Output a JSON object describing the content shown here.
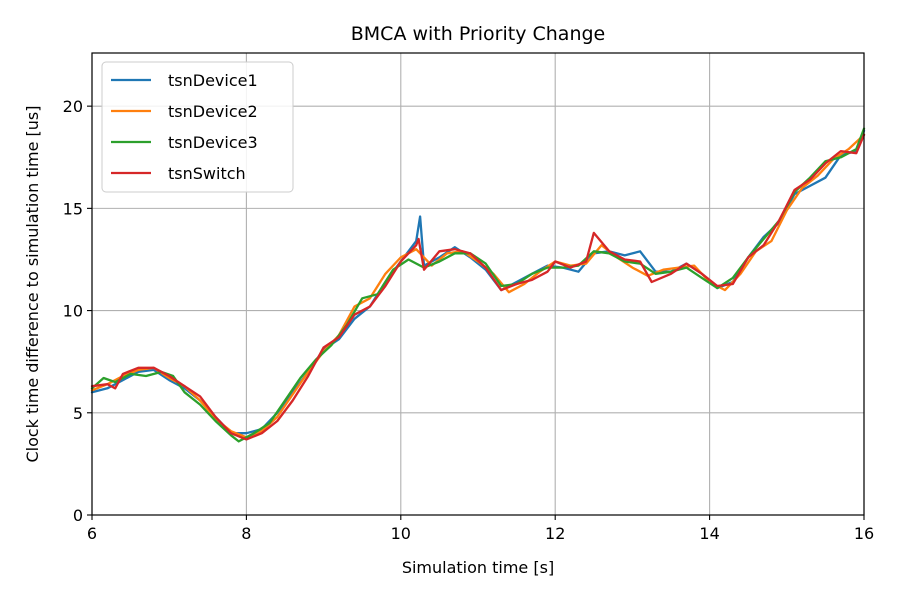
{
  "chart_data": {
    "type": "line",
    "title": "BMCA with Priority Change",
    "xlabel": "Simulation time [s]",
    "ylabel": "Clock time difference to simulation time [us]",
    "xlim": [
      6,
      16
    ],
    "ylim": [
      0,
      22.6
    ],
    "xticks": [
      6,
      8,
      10,
      12,
      14,
      16
    ],
    "yticks": [
      0,
      5,
      10,
      15,
      20
    ],
    "grid": true,
    "legend_position": "top-left",
    "colors": [
      "#1f77b4",
      "#ff7f0e",
      "#2ca02c",
      "#d62728"
    ],
    "series": [
      {
        "name": "tsnDevice1",
        "color": "#1f77b4",
        "points": [
          [
            6.0,
            6.0
          ],
          [
            6.2,
            6.2
          ],
          [
            6.4,
            6.6
          ],
          [
            6.6,
            7.0
          ],
          [
            6.8,
            7.1
          ],
          [
            7.0,
            6.6
          ],
          [
            7.2,
            6.2
          ],
          [
            7.4,
            5.6
          ],
          [
            7.6,
            4.8
          ],
          [
            7.8,
            4.0
          ],
          [
            8.0,
            4.0
          ],
          [
            8.2,
            4.2
          ],
          [
            8.4,
            5.0
          ],
          [
            8.6,
            6.0
          ],
          [
            8.8,
            7.0
          ],
          [
            9.0,
            8.1
          ],
          [
            9.2,
            8.6
          ],
          [
            9.4,
            9.6
          ],
          [
            9.6,
            10.2
          ],
          [
            9.8,
            11.4
          ],
          [
            10.0,
            12.4
          ],
          [
            10.2,
            13.4
          ],
          [
            10.25,
            14.6
          ],
          [
            10.3,
            12.2
          ],
          [
            10.5,
            12.6
          ],
          [
            10.7,
            13.1
          ],
          [
            10.9,
            12.6
          ],
          [
            11.1,
            12.0
          ],
          [
            11.3,
            11.0
          ],
          [
            11.5,
            11.4
          ],
          [
            11.7,
            11.8
          ],
          [
            11.9,
            12.2
          ],
          [
            12.1,
            12.1
          ],
          [
            12.3,
            11.9
          ],
          [
            12.5,
            12.8
          ],
          [
            12.7,
            12.9
          ],
          [
            12.9,
            12.7
          ],
          [
            13.1,
            12.9
          ],
          [
            13.3,
            11.9
          ],
          [
            13.5,
            11.9
          ],
          [
            13.7,
            12.3
          ],
          [
            13.9,
            11.8
          ],
          [
            14.1,
            11.1
          ],
          [
            14.3,
            11.4
          ],
          [
            14.5,
            12.6
          ],
          [
            14.7,
            13.6
          ],
          [
            14.9,
            14.3
          ],
          [
            15.1,
            15.7
          ],
          [
            15.3,
            16.1
          ],
          [
            15.5,
            16.5
          ],
          [
            15.7,
            17.6
          ],
          [
            15.9,
            17.8
          ],
          [
            16.0,
            18.8
          ]
        ]
      },
      {
        "name": "tsnDevice2",
        "color": "#ff7f0e",
        "points": [
          [
            6.0,
            6.1
          ],
          [
            6.2,
            6.4
          ],
          [
            6.4,
            6.8
          ],
          [
            6.6,
            7.1
          ],
          [
            6.8,
            7.2
          ],
          [
            7.0,
            6.7
          ],
          [
            7.2,
            6.3
          ],
          [
            7.4,
            5.6
          ],
          [
            7.6,
            4.7
          ],
          [
            7.8,
            4.1
          ],
          [
            8.0,
            3.8
          ],
          [
            8.2,
            4.1
          ],
          [
            8.4,
            4.8
          ],
          [
            8.6,
            5.9
          ],
          [
            8.8,
            7.0
          ],
          [
            9.0,
            8.0
          ],
          [
            9.2,
            8.8
          ],
          [
            9.4,
            10.2
          ],
          [
            9.6,
            10.6
          ],
          [
            9.8,
            11.8
          ],
          [
            10.0,
            12.6
          ],
          [
            10.2,
            13.0
          ],
          [
            10.4,
            12.2
          ],
          [
            10.6,
            12.8
          ],
          [
            10.8,
            12.9
          ],
          [
            11.0,
            12.4
          ],
          [
            11.2,
            11.8
          ],
          [
            11.4,
            10.9
          ],
          [
            11.6,
            11.3
          ],
          [
            11.8,
            11.9
          ],
          [
            12.0,
            12.4
          ],
          [
            12.2,
            12.2
          ],
          [
            12.4,
            12.3
          ],
          [
            12.6,
            13.2
          ],
          [
            12.8,
            12.6
          ],
          [
            13.0,
            12.1
          ],
          [
            13.2,
            11.7
          ],
          [
            13.4,
            12.0
          ],
          [
            13.6,
            12.1
          ],
          [
            13.8,
            12.2
          ],
          [
            14.0,
            11.4
          ],
          [
            14.2,
            11.0
          ],
          [
            14.4,
            11.8
          ],
          [
            14.6,
            12.9
          ],
          [
            14.8,
            13.4
          ],
          [
            15.0,
            14.9
          ],
          [
            15.2,
            16.0
          ],
          [
            15.4,
            16.6
          ],
          [
            15.6,
            17.4
          ],
          [
            15.8,
            17.9
          ],
          [
            16.0,
            18.6
          ]
        ]
      },
      {
        "name": "tsnDevice3",
        "color": "#2ca02c",
        "points": [
          [
            6.0,
            6.2
          ],
          [
            6.15,
            6.7
          ],
          [
            6.3,
            6.5
          ],
          [
            6.5,
            6.9
          ],
          [
            6.7,
            6.8
          ],
          [
            6.9,
            7.0
          ],
          [
            7.05,
            6.8
          ],
          [
            7.2,
            6.0
          ],
          [
            7.4,
            5.4
          ],
          [
            7.6,
            4.6
          ],
          [
            7.8,
            3.9
          ],
          [
            7.9,
            3.6
          ],
          [
            8.1,
            4.0
          ],
          [
            8.3,
            4.5
          ],
          [
            8.5,
            5.6
          ],
          [
            8.7,
            6.7
          ],
          [
            8.9,
            7.6
          ],
          [
            9.1,
            8.3
          ],
          [
            9.3,
            9.3
          ],
          [
            9.5,
            10.6
          ],
          [
            9.7,
            10.8
          ],
          [
            9.9,
            12.0
          ],
          [
            10.1,
            12.5
          ],
          [
            10.3,
            12.1
          ],
          [
            10.5,
            12.4
          ],
          [
            10.7,
            12.8
          ],
          [
            10.9,
            12.8
          ],
          [
            11.1,
            12.3
          ],
          [
            11.3,
            11.2
          ],
          [
            11.5,
            11.3
          ],
          [
            11.7,
            11.8
          ],
          [
            11.9,
            12.1
          ],
          [
            12.1,
            12.1
          ],
          [
            12.3,
            12.2
          ],
          [
            12.5,
            12.9
          ],
          [
            12.7,
            12.8
          ],
          [
            12.9,
            12.4
          ],
          [
            13.1,
            12.3
          ],
          [
            13.3,
            11.8
          ],
          [
            13.5,
            11.9
          ],
          [
            13.7,
            12.1
          ],
          [
            13.9,
            11.6
          ],
          [
            14.1,
            11.1
          ],
          [
            14.3,
            11.6
          ],
          [
            14.5,
            12.6
          ],
          [
            14.7,
            13.5
          ],
          [
            14.9,
            14.4
          ],
          [
            15.1,
            15.8
          ],
          [
            15.3,
            16.5
          ],
          [
            15.5,
            17.3
          ],
          [
            15.7,
            17.5
          ],
          [
            15.9,
            17.9
          ],
          [
            16.0,
            18.9
          ]
        ]
      },
      {
        "name": "tsnSwitch",
        "color": "#d62728",
        "points": [
          [
            6.0,
            6.3
          ],
          [
            6.2,
            6.4
          ],
          [
            6.3,
            6.2
          ],
          [
            6.4,
            6.9
          ],
          [
            6.6,
            7.2
          ],
          [
            6.8,
            7.2
          ],
          [
            7.0,
            6.8
          ],
          [
            7.2,
            6.3
          ],
          [
            7.4,
            5.8
          ],
          [
            7.6,
            4.8
          ],
          [
            7.8,
            4.0
          ],
          [
            8.0,
            3.7
          ],
          [
            8.2,
            4.0
          ],
          [
            8.4,
            4.6
          ],
          [
            8.6,
            5.6
          ],
          [
            8.8,
            6.8
          ],
          [
            9.0,
            8.2
          ],
          [
            9.2,
            8.7
          ],
          [
            9.4,
            9.8
          ],
          [
            9.6,
            10.2
          ],
          [
            9.8,
            11.2
          ],
          [
            10.0,
            12.4
          ],
          [
            10.2,
            13.2
          ],
          [
            10.23,
            13.5
          ],
          [
            10.3,
            12.0
          ],
          [
            10.5,
            12.9
          ],
          [
            10.7,
            13.0
          ],
          [
            10.9,
            12.8
          ],
          [
            11.1,
            12.1
          ],
          [
            11.3,
            11.0
          ],
          [
            11.5,
            11.3
          ],
          [
            11.7,
            11.5
          ],
          [
            11.9,
            11.9
          ],
          [
            12.0,
            12.4
          ],
          [
            12.2,
            12.1
          ],
          [
            12.4,
            12.4
          ],
          [
            12.5,
            13.8
          ],
          [
            12.7,
            12.9
          ],
          [
            12.9,
            12.5
          ],
          [
            13.1,
            12.4
          ],
          [
            13.25,
            11.4
          ],
          [
            13.5,
            11.8
          ],
          [
            13.7,
            12.3
          ],
          [
            13.9,
            11.8
          ],
          [
            14.1,
            11.2
          ],
          [
            14.3,
            11.3
          ],
          [
            14.5,
            12.6
          ],
          [
            14.7,
            13.2
          ],
          [
            14.9,
            14.4
          ],
          [
            15.1,
            15.9
          ],
          [
            15.3,
            16.4
          ],
          [
            15.5,
            17.2
          ],
          [
            15.7,
            17.8
          ],
          [
            15.9,
            17.7
          ],
          [
            16.0,
            18.6
          ]
        ]
      }
    ]
  }
}
